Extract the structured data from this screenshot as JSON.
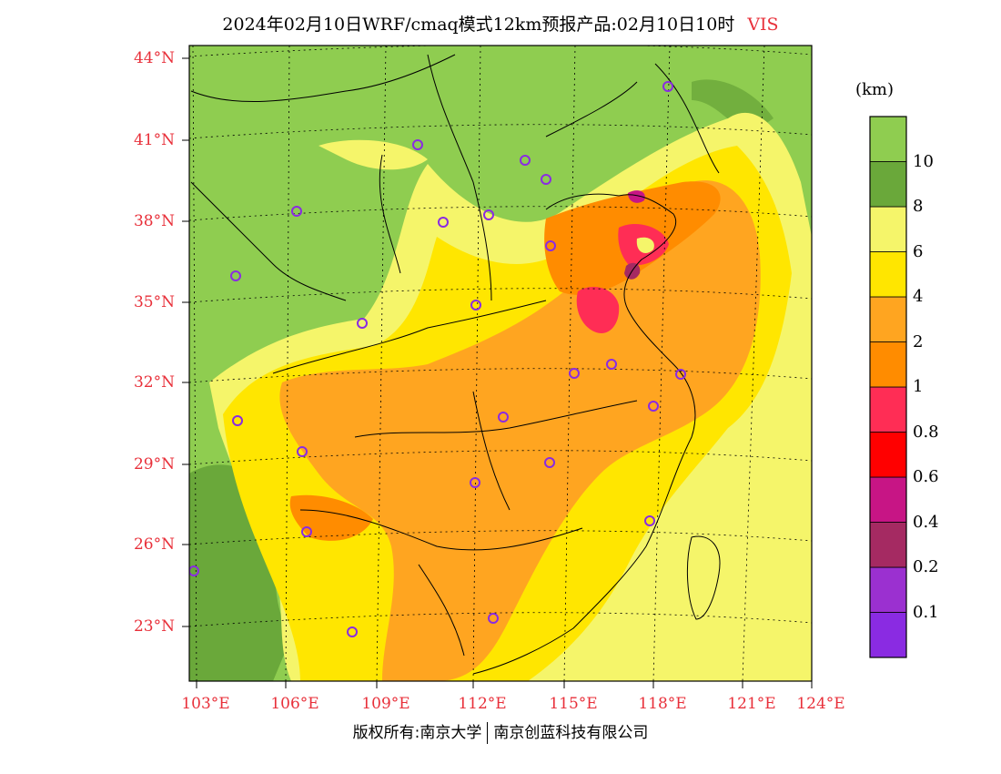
{
  "title": {
    "text": "2024年02月10日WRF/cmaq模式12km预报产品:02月10日10时",
    "variable": "VIS"
  },
  "colorbar": {
    "unit": "(km)",
    "colors": [
      "#8a2be2",
      "#9b30d0",
      "#a52a62",
      "#c71585",
      "#ff0000",
      "#ff2d55",
      "#ff8c00",
      "#ffa520",
      "#ffe600",
      "#f5f56a",
      "#6aa83a",
      "#8fcd50"
    ],
    "labels": [
      "0.1",
      "0.2",
      "0.4",
      "0.6",
      "0.8",
      "1",
      "2",
      "4",
      "6",
      "8",
      "10"
    ]
  },
  "axes": {
    "lat_ticks": [
      "44°N",
      "41°N",
      "38°N",
      "35°N",
      "32°N",
      "29°N",
      "26°N",
      "23°N"
    ],
    "lon_ticks": [
      "103°E",
      "106°E",
      "109°E",
      "112°E",
      "115°E",
      "118°E",
      "121°E",
      "124°E"
    ]
  },
  "colors": {
    "label_red": "#e8303a",
    "land_green": "#8fcd50",
    "dark_green": "#6aa83a",
    "pale_yellow": "#f5f56a",
    "yellow": "#ffe600",
    "light_orange": "#ffa520",
    "orange": "#ff8c00",
    "marker_purple": "#8a2be2"
  },
  "copyright": {
    "left": "版权所有:南京大学",
    "right": "南京创蓝科技有限公司"
  }
}
